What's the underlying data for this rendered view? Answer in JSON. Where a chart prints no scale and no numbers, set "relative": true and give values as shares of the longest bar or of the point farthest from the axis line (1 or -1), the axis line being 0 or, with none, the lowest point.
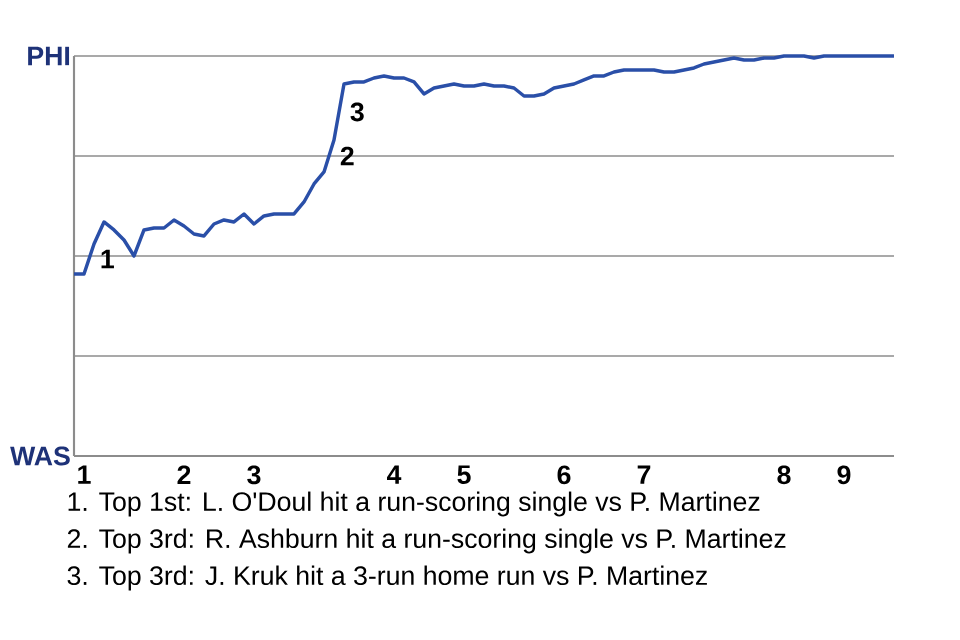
{
  "chart_data": {
    "type": "line",
    "color": "#2a4fa8",
    "line_style": "solid",
    "marker": "none",
    "grid": "y",
    "relative": true,
    "categories": [
      null,
      "1",
      null,
      null,
      null,
      null,
      null,
      null,
      null,
      null,
      null,
      "2",
      null,
      null,
      null,
      null,
      null,
      null,
      "3",
      null,
      null,
      null,
      null,
      null,
      null,
      null,
      null,
      null,
      null,
      null,
      null,
      null,
      "4",
      null,
      null,
      null,
      null,
      null,
      null,
      "5",
      null,
      null,
      null,
      null,
      null,
      null,
      null,
      null,
      null,
      "6",
      null,
      null,
      null,
      null,
      null,
      null,
      null,
      "7",
      null,
      null,
      null,
      null,
      null,
      null,
      null,
      null,
      null,
      null,
      null,
      null,
      null,
      "8",
      null,
      null,
      null,
      null,
      null,
      "9",
      null,
      null,
      null,
      null,
      null
    ],
    "values": [
      0.455,
      0.455,
      0.53,
      0.585,
      0.565,
      0.54,
      0.5,
      0.565,
      0.57,
      0.57,
      0.59,
      0.575,
      0.555,
      0.55,
      0.58,
      0.59,
      0.585,
      0.605,
      0.58,
      0.6,
      0.605,
      0.605,
      0.605,
      0.635,
      0.68,
      0.71,
      0.79,
      0.93,
      0.935,
      0.935,
      0.945,
      0.95,
      0.945,
      0.945,
      0.935,
      0.905,
      0.92,
      0.925,
      0.93,
      0.925,
      0.925,
      0.93,
      0.925,
      0.925,
      0.92,
      0.9,
      0.9,
      0.905,
      0.92,
      0.925,
      0.93,
      0.94,
      0.95,
      0.95,
      0.96,
      0.965,
      0.965,
      0.965,
      0.965,
      0.96,
      0.96,
      0.965,
      0.97,
      0.98,
      0.985,
      0.99,
      0.995,
      0.99,
      0.99,
      0.995,
      0.995,
      1,
      1,
      1,
      0.995,
      1,
      1,
      1,
      1,
      1,
      1,
      1,
      1
    ],
    "annotations": [
      "PHI",
      "WAS",
      "1",
      "2",
      "3",
      "1. Top 1st: L. O'Doul hit a run-scoring single vs P. Martinez",
      "2. Top 3rd: R. Ashburn hit a run-scoring single vs P. Martinez",
      "3. Top 3rd: J. Kruk hit a 3-run home run vs P. Martinez"
    ]
  }
}
